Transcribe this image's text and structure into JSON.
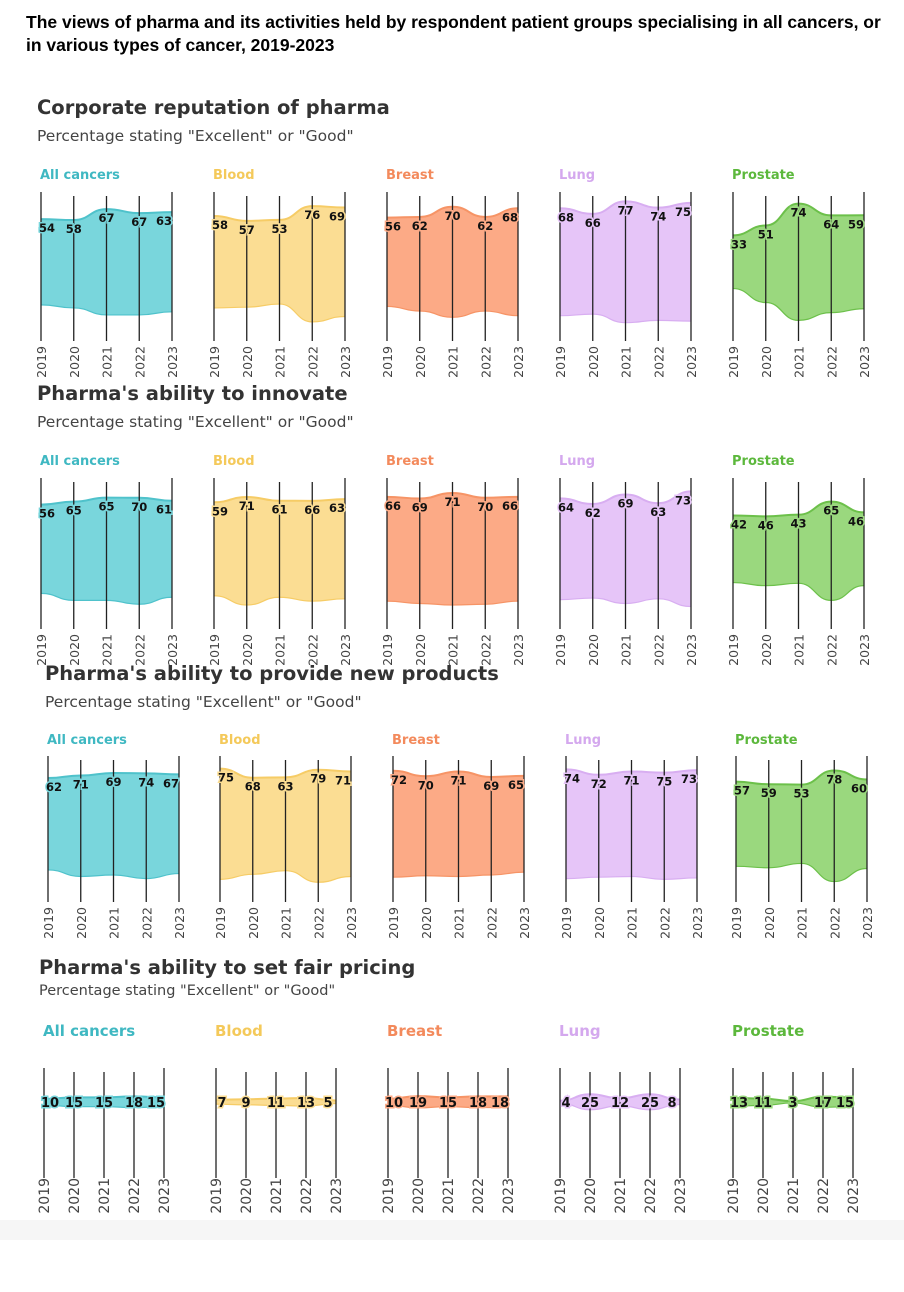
{
  "title": "The views of pharma and its activities held by respondent patient groups specialising in all cancers, or in various types of cancer, 2019-2023",
  "colors": {
    "All cancers": {
      "fill": "#79d6dc",
      "stroke": "#4fc2cb",
      "label": "#3fb8c2"
    },
    "Blood": {
      "fill": "#fbdd93",
      "stroke": "#f6cc66",
      "label": "#f4c95a"
    },
    "Breast": {
      "fill": "#fcaa86",
      "stroke": "#f69466",
      "label": "#f38a5c"
    },
    "Lung": {
      "fill": "#e6c5f8",
      "stroke": "#d8aef1",
      "label": "#d4a8ee"
    },
    "Prostate": {
      "fill": "#9ad87e",
      "stroke": "#6cc04a",
      "label": "#5cb83c"
    }
  },
  "sections": [
    {
      "title": "Corporate reputation of pharma",
      "subtitle": "Percentage stating \"Excellent\" or \"Good\"",
      "chart_data": {
        "type": "area",
        "years": [
          "2019",
          "2020",
          "2021",
          "2022",
          "2023"
        ],
        "panels": [
          {
            "name": "All cancers",
            "values": [
              54,
              58,
              67,
              67,
              63
            ]
          },
          {
            "name": "Blood",
            "values": [
              58,
              57,
              53,
              76,
              69
            ]
          },
          {
            "name": "Breast",
            "values": [
              56,
              62,
              70,
              62,
              68
            ]
          },
          {
            "name": "Lung",
            "values": [
              68,
              66,
              77,
              74,
              75
            ]
          },
          {
            "name": "Prostate",
            "values": [
              33,
              51,
              74,
              64,
              59
            ]
          }
        ]
      }
    },
    {
      "title": "Pharma's ability to innovate",
      "subtitle": "Percentage stating \"Excellent\" or \"Good\"",
      "chart_data": {
        "type": "area",
        "years": [
          "2019",
          "2020",
          "2021",
          "2022",
          "2023"
        ],
        "panels": [
          {
            "name": "All cancers",
            "values": [
              56,
              65,
              65,
              70,
              61
            ]
          },
          {
            "name": "Blood",
            "values": [
              59,
              71,
              61,
              66,
              63
            ]
          },
          {
            "name": "Breast",
            "values": [
              66,
              69,
              71,
              70,
              66
            ]
          },
          {
            "name": "Lung",
            "values": [
              64,
              62,
              69,
              63,
              73
            ]
          },
          {
            "name": "Prostate",
            "values": [
              42,
              46,
              43,
              65,
              46
            ]
          }
        ]
      }
    },
    {
      "title": "Pharma's ability to provide new products",
      "subtitle": "Percentage stating \"Excellent\" or \"Good\"",
      "chart_data": {
        "type": "area",
        "years": [
          "2019",
          "2020",
          "2021",
          "2022",
          "2023"
        ],
        "panels": [
          {
            "name": "All cancers",
            "values": [
              62,
              71,
              69,
              74,
              67
            ]
          },
          {
            "name": "Blood",
            "values": [
              75,
              68,
              63,
              79,
              71
            ]
          },
          {
            "name": "Breast",
            "values": [
              72,
              70,
              71,
              69,
              65
            ]
          },
          {
            "name": "Lung",
            "values": [
              74,
              72,
              71,
              75,
              73
            ]
          },
          {
            "name": "Prostate",
            "values": [
              57,
              59,
              53,
              78,
              60
            ]
          }
        ]
      }
    },
    {
      "title": "Pharma's ability to set fair pricing",
      "subtitle": "Percentage stating \"Excellent\" or \"Good\"",
      "chart_data": {
        "type": "area",
        "years": [
          "2019",
          "2020",
          "2021",
          "2022",
          "2023"
        ],
        "panels": [
          {
            "name": "All cancers",
            "values": [
              10,
              15,
              15,
              18,
              15
            ]
          },
          {
            "name": "Blood",
            "values": [
              7,
              9,
              11,
              13,
              5
            ]
          },
          {
            "name": "Breast",
            "values": [
              10,
              19,
              15,
              18,
              18
            ]
          },
          {
            "name": "Lung",
            "values": [
              4,
              25,
              12,
              25,
              8
            ]
          },
          {
            "name": "Prostate",
            "values": [
              13,
              11,
              3,
              17,
              15
            ]
          }
        ]
      }
    }
  ]
}
